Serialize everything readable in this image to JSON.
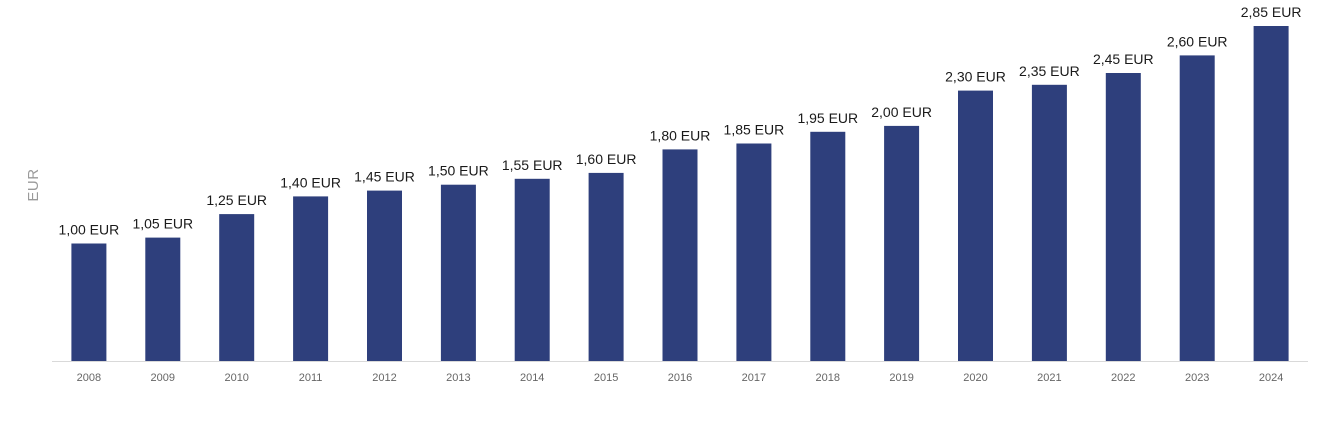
{
  "chart_data": {
    "type": "bar",
    "ylabel": "EUR",
    "categories": [
      "2008",
      "2009",
      "2010",
      "2011",
      "2012",
      "2013",
      "2014",
      "2015",
      "2016",
      "2017",
      "2018",
      "2019",
      "2020",
      "2021",
      "2022",
      "2023",
      "2024"
    ],
    "values": [
      1.0,
      1.05,
      1.25,
      1.4,
      1.45,
      1.5,
      1.55,
      1.6,
      1.8,
      1.85,
      1.95,
      2.0,
      2.3,
      2.35,
      2.45,
      2.6,
      2.85
    ],
    "data_labels": [
      "1,00 EUR",
      "1,05 EUR",
      "1,25 EUR",
      "1,40 EUR",
      "1,45 EUR",
      "1,50 EUR",
      "1,55 EUR",
      "1,60 EUR",
      "1,80 EUR",
      "1,85 EUR",
      "1,95 EUR",
      "2,00 EUR",
      "2,30 EUR",
      "2,35 EUR",
      "2,45 EUR",
      "2,60 EUR",
      "2,85 EUR"
    ],
    "ylim": [
      0,
      2.85
    ],
    "grid": false,
    "legend": "none",
    "colors": {
      "bar": "#2e3f7c",
      "axis": "#d9d9d9",
      "tick_label": "#666666",
      "data_label": "#1a1a1a"
    }
  }
}
